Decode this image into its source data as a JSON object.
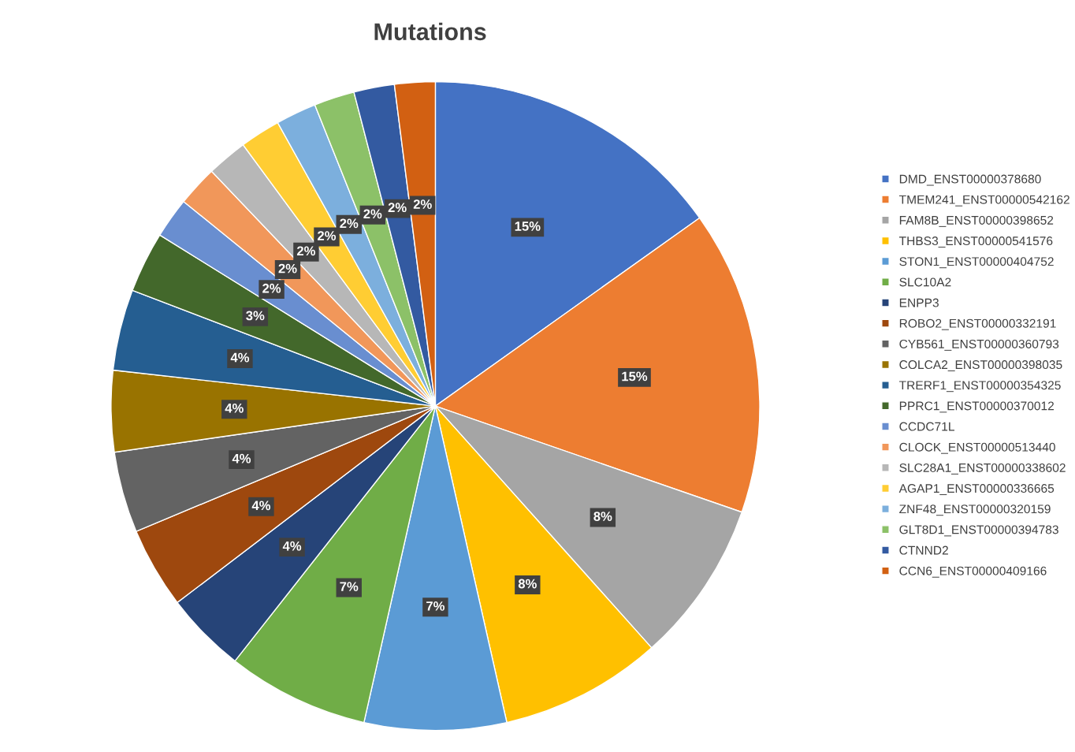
{
  "chart_data": {
    "type": "pie",
    "title": "Mutations",
    "categories": [
      "DMD_ENST00000378680",
      "TMEM241_ENST00000542162",
      "FAM8B_ENST00000398652",
      "THBS3_ENST00000541576",
      "STON1_ENST00000404752",
      "SLC10A2",
      "ENPP3",
      "ROBO2_ENST00000332191",
      "CYB561_ENST00000360793",
      "COLCA2_ENST00000398035",
      "TRERF1_ENST00000354325",
      "PPRC1_ENST00000370012",
      "CCDC71L",
      "CLOCK_ENST00000513440",
      "SLC28A1_ENST00000338602",
      "AGAP1_ENST00000336665",
      "ZNF48_ENST00000320159",
      "GLT8D1_ENST00000394783",
      "CTNND2",
      "CCN6_ENST00000409166"
    ],
    "values": [
      15,
      15,
      8,
      8,
      7,
      7,
      4,
      4,
      4,
      4,
      4,
      3,
      2,
      2,
      2,
      2,
      2,
      2,
      2,
      2
    ],
    "colors": [
      "#4472c4",
      "#ed7d31",
      "#a5a5a5",
      "#ffc000",
      "#5b9bd5",
      "#70ad47",
      "#264478",
      "#9e480e",
      "#636363",
      "#997300",
      "#255e91",
      "#43682b",
      "#698ed0",
      "#f1975a",
      "#b7b7b7",
      "#ffcd33",
      "#7cafdd",
      "#8cc168",
      "#335aa1",
      "#d26012"
    ],
    "value_labels": [
      "15%",
      "15%",
      "8%",
      "8%",
      "7%",
      "7%",
      "4%",
      "4%",
      "4%",
      "4%",
      "4%",
      "3%",
      "2%",
      "2%",
      "2%",
      "2%",
      "2%",
      "2%",
      "2%",
      "2%"
    ],
    "legend": "right"
  }
}
